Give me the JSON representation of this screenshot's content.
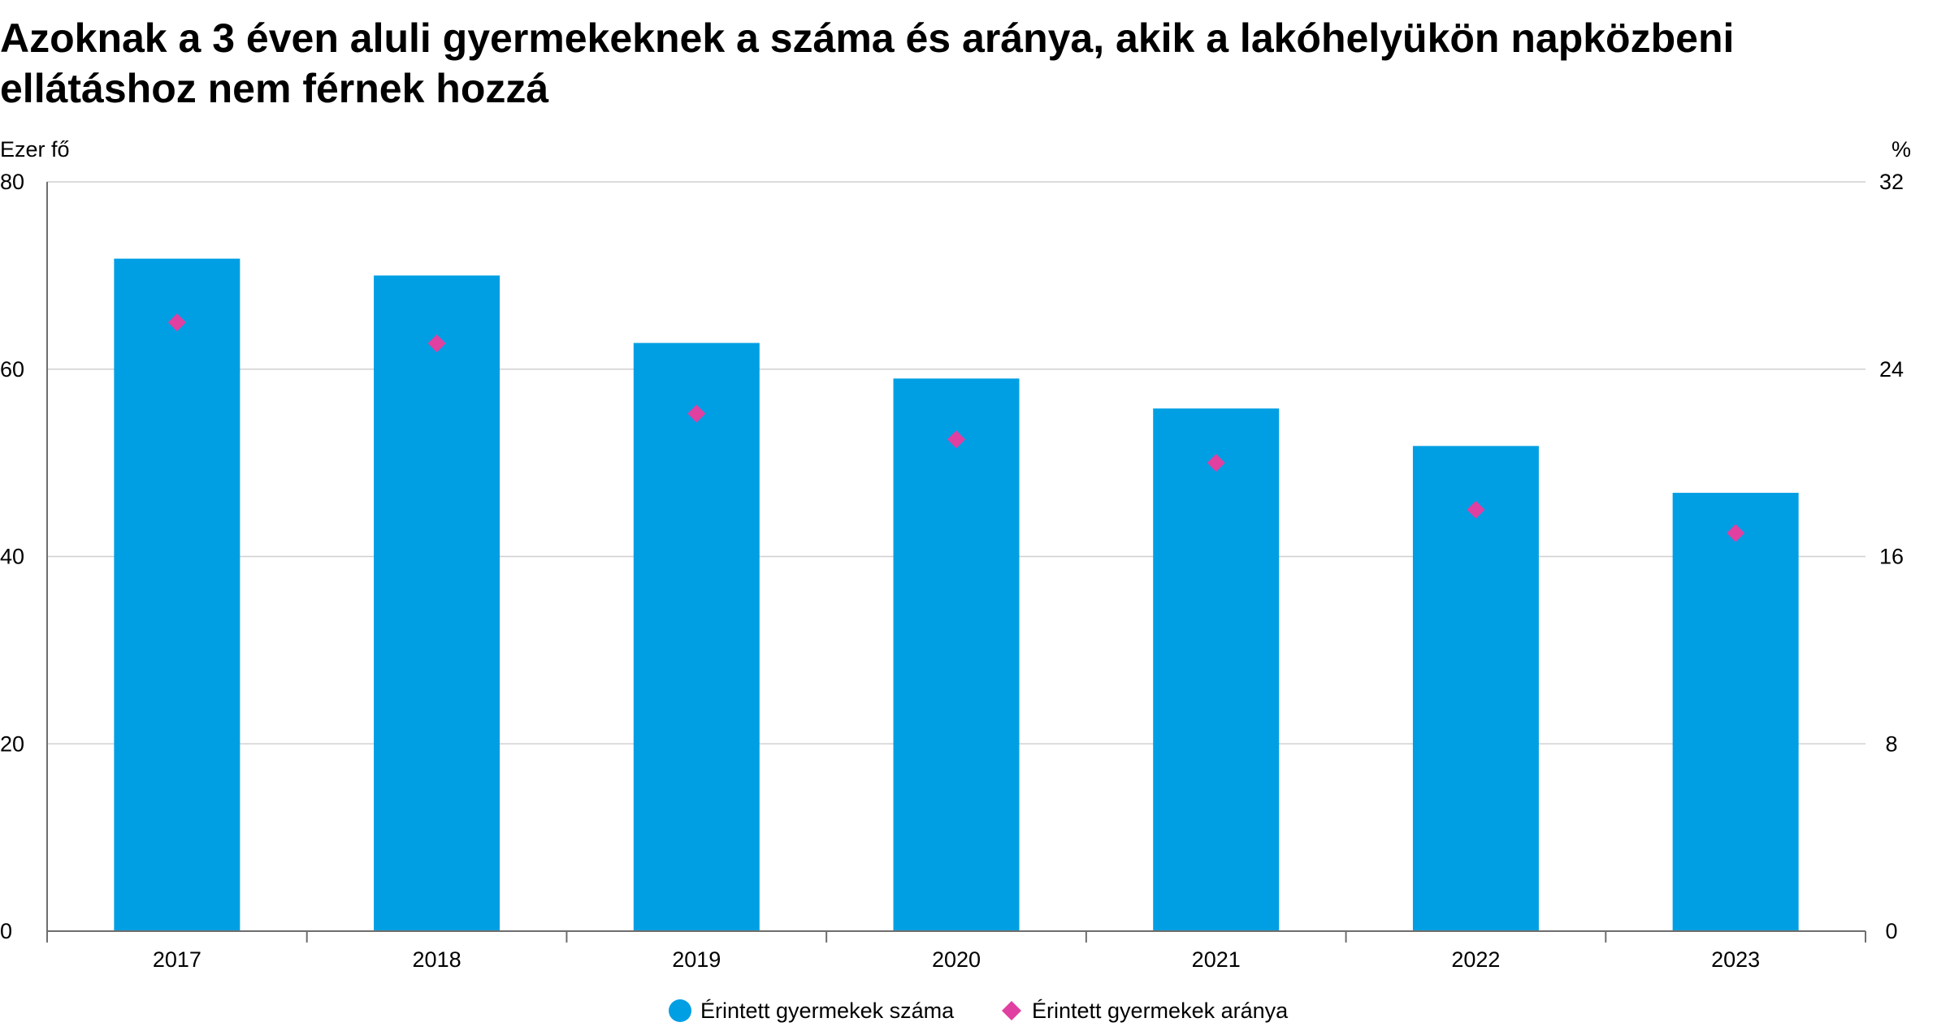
{
  "title_lines": [
    "Azoknak a 3 éven aluli gyermekeknek a száma és aránya, akik a lakóhelyükön napközbeni",
    "ellátáshoz nem férnek hozzá"
  ],
  "chart_data": {
    "type": "bar",
    "categories": [
      "2017",
      "2018",
      "2019",
      "2020",
      "2021",
      "2022",
      "2023"
    ],
    "series": [
      {
        "name": "Érintett gyermekek száma",
        "kind": "bar",
        "axis": "left",
        "color": "#009fe3",
        "values": [
          71.8,
          70.0,
          62.8,
          59.0,
          55.8,
          51.8,
          46.8
        ]
      },
      {
        "name": "Érintett gyermekek aránya",
        "kind": "marker-diamond",
        "axis": "right",
        "color": "#e040a0",
        "values": [
          26.0,
          25.1,
          22.1,
          21.0,
          20.0,
          18.0,
          17.0
        ]
      }
    ],
    "y_left": {
      "label": "Ezer fő",
      "range": [
        0,
        80
      ],
      "ticks": [
        "0",
        "20",
        "40",
        "60",
        "80"
      ]
    },
    "y_right": {
      "label": "%",
      "range": [
        0,
        32
      ],
      "ticks": [
        "0",
        "8",
        "16",
        "24",
        "32"
      ]
    },
    "grid": true,
    "legend_position": "bottom"
  }
}
